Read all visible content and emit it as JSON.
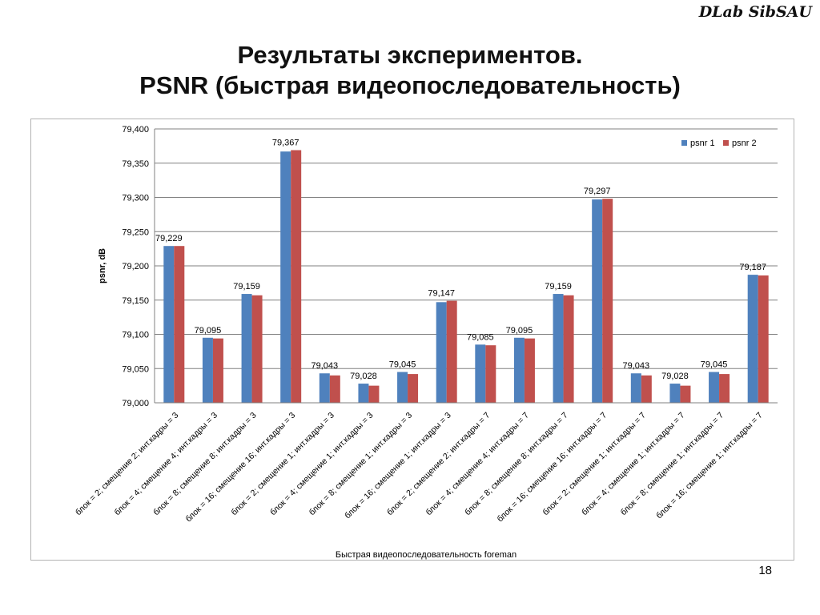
{
  "brand": "DLab SibSAU",
  "slide": {
    "title_line1": "Результаты экспериментов.",
    "title_line2": "PSNR (быстрая видеопоследовательность)",
    "number": "18"
  },
  "colors": {
    "psnr1": "#4f81bd",
    "psnr2": "#c0504d",
    "grid": "#808080"
  },
  "chart_data": {
    "type": "bar",
    "title": "",
    "xlabel": "Быстрая  видеопоследовательность  foreman",
    "ylabel": "psnr, dB",
    "ylim": [
      79.0,
      79.4
    ],
    "yticks": [
      79.0,
      79.05,
      79.1,
      79.15,
      79.2,
      79.25,
      79.3,
      79.35,
      79.4
    ],
    "ytick_labels": [
      "79,000",
      "79,050",
      "79,100",
      "79,150",
      "79,200",
      "79,250",
      "79,300",
      "79,350",
      "79,400"
    ],
    "grid": true,
    "legend_position": "top-right",
    "categories": [
      "блок = 2; смещение 2; инт.кадры = 3",
      "блок = 4; смещение 4; инт.кадры = 3",
      "блок = 8; смещение 8; инт.кадры = 3",
      "блок = 16; смещение 16; инт.кадры = 3",
      "блок = 2; смещение 1; инт.кадры = 3",
      "блок = 4; смещение 1; инт.кадры = 3",
      "блок = 8; смещение 1; инт.кадры = 3",
      "блок = 16; смещение 1; инт.кадры = 3",
      "блок = 2; смещение 2; инт.кадры = 7",
      "блок = 4; смещение 4; инт.кадры = 7",
      "блок = 8; смещение 8; инт.кадры = 7",
      "блок = 16; смещение 16; инт.кадры = 7",
      "блок = 2; смещение 1; инт.кадры = 7",
      "блок = 4; смещение 1; инт.кадры = 7",
      "блок = 8; смещение 1; инт.кадры = 7",
      "блок = 16; смещение 1; инт.кадры = 7"
    ],
    "series": [
      {
        "name": "psnr 1",
        "values": [
          79.229,
          79.095,
          79.159,
          79.367,
          79.043,
          79.028,
          79.045,
          79.147,
          79.085,
          79.095,
          79.159,
          79.297,
          79.043,
          79.028,
          79.045,
          79.187
        ]
      },
      {
        "name": "psnr 2",
        "values": [
          79.229,
          79.094,
          79.157,
          79.369,
          79.04,
          79.025,
          79.042,
          79.149,
          79.084,
          79.094,
          79.157,
          79.298,
          79.04,
          79.025,
          79.042,
          79.186
        ]
      }
    ],
    "data_labels": [
      "79,229",
      "79,095",
      "79,159",
      "79,367",
      "79,043",
      "79,028",
      "79,045",
      "79,147",
      "79,085",
      "79,095",
      "79,159",
      "79,297",
      "79,043",
      "79,028",
      "79,045",
      "79,187"
    ]
  }
}
